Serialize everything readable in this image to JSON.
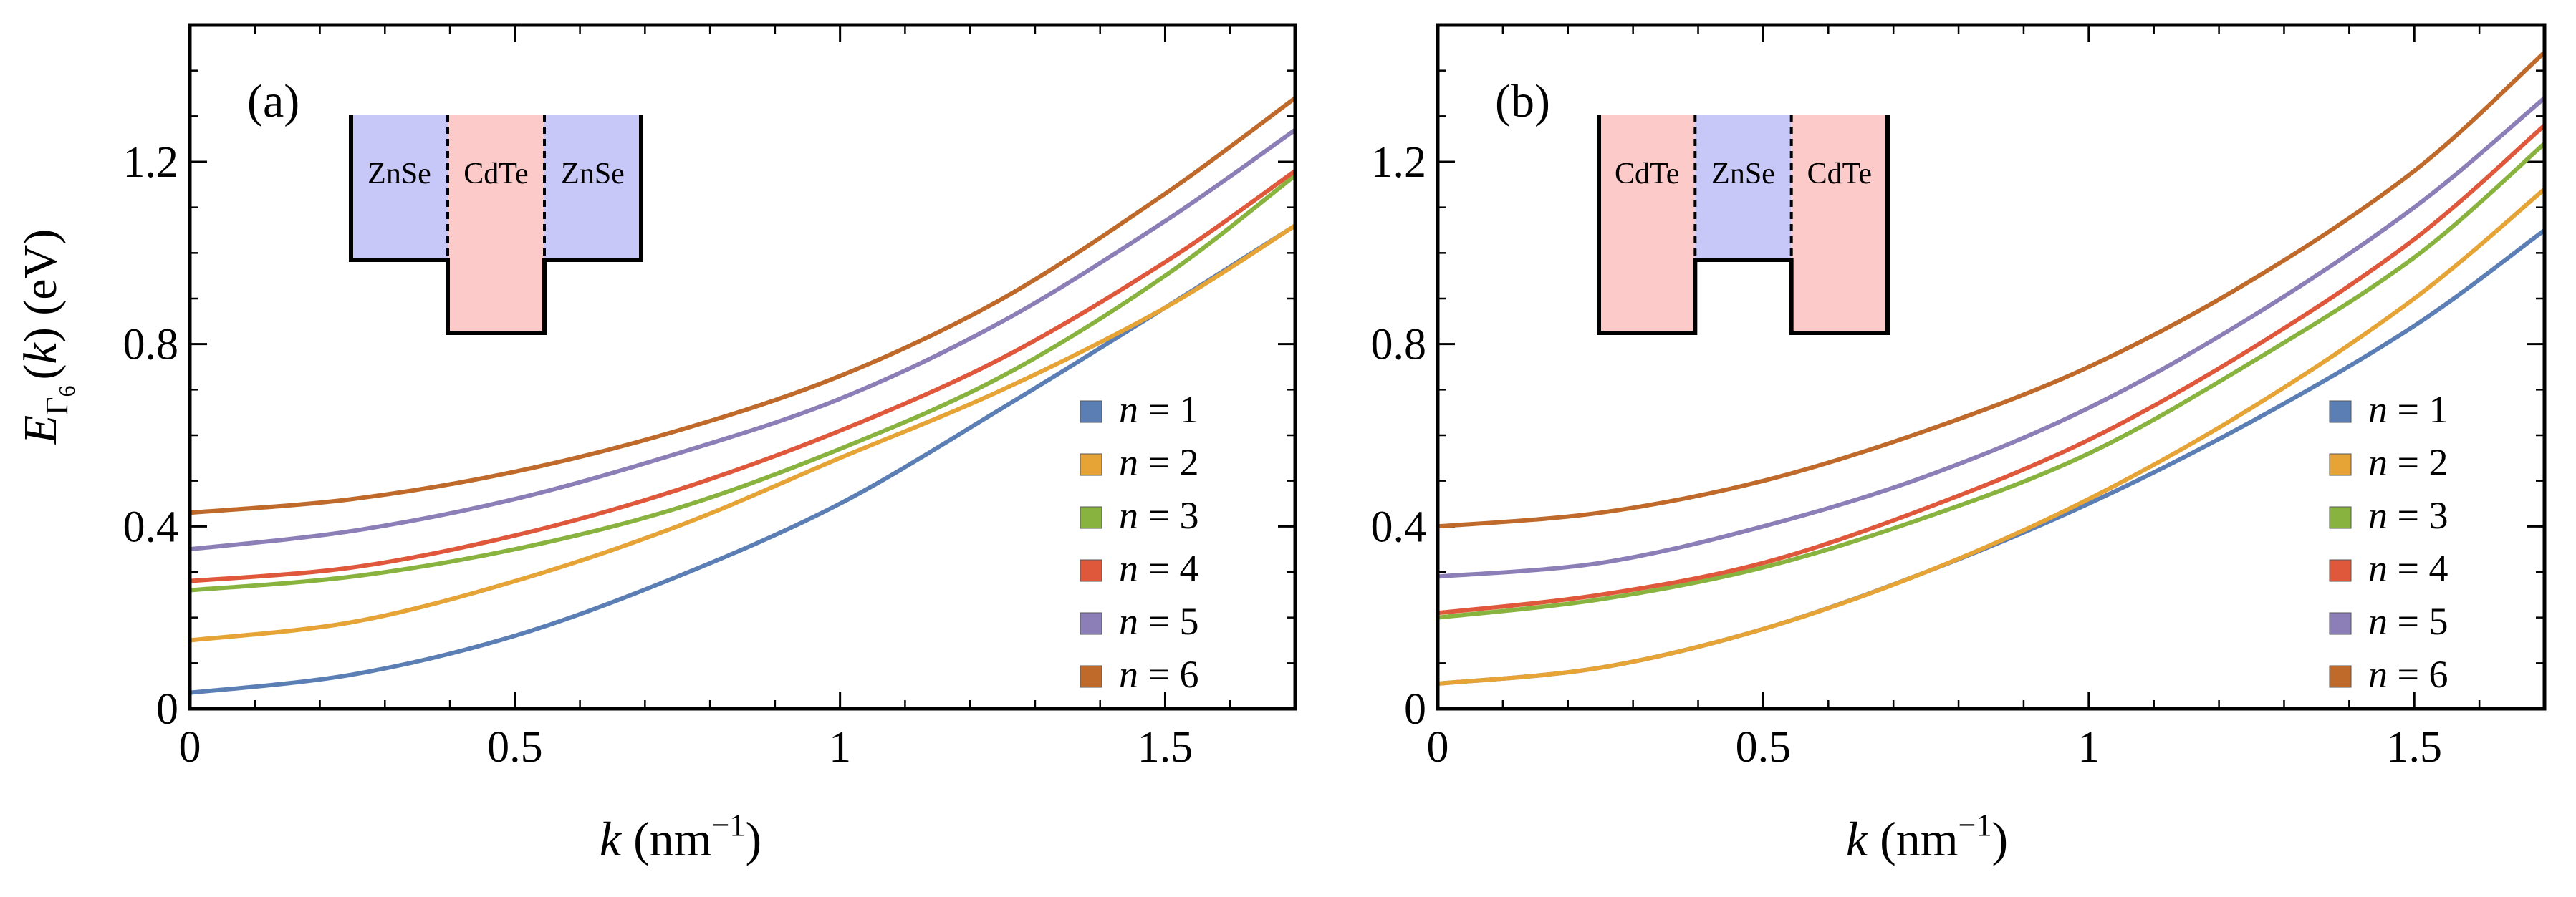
{
  "axis_common": {
    "xlabel_italic": "k",
    "xlabel_unit": " (nm",
    "xlabel_sup": "−1",
    "xlabel_close": ")",
    "ylabel_E": "E",
    "ylabel_sub": "Γ",
    "ylabel_subsub": "6",
    "ylabel_rest1": "(",
    "ylabel_k": "k",
    "ylabel_rest2": ") (eV)"
  },
  "legend_prefix": "n",
  "legend_eq": " = ",
  "chart_data": [
    {
      "type": "line",
      "panel_label": "(a)",
      "xlim": [
        0,
        1.7
      ],
      "ylim": [
        0,
        1.5
      ],
      "x_ticks": [
        0,
        0.5,
        1,
        1.5
      ],
      "x_tick_labels": [
        "0",
        "0.5",
        "1",
        "1.5"
      ],
      "y_ticks": [
        0,
        0.4,
        0.8,
        1.2
      ],
      "y_tick_labels": [
        "0",
        "0.4",
        "0.8",
        "1.2"
      ],
      "inset": {
        "left": "ZnSe",
        "center": "CdTe",
        "right": "ZnSe",
        "profile": "well"
      },
      "series": [
        {
          "name": "1",
          "color": "#5b7fb5",
          "x": [
            0,
            0.25,
            0.5,
            0.75,
            1.0,
            1.25,
            1.5,
            1.7
          ],
          "y": [
            0.035,
            0.075,
            0.16,
            0.29,
            0.45,
            0.66,
            0.88,
            1.06
          ]
        },
        {
          "name": "2",
          "color": "#e5a435",
          "x": [
            0,
            0.25,
            0.5,
            0.75,
            1.0,
            1.25,
            1.5,
            1.7
          ],
          "y": [
            0.15,
            0.19,
            0.28,
            0.4,
            0.55,
            0.7,
            0.88,
            1.06
          ]
        },
        {
          "name": "3",
          "color": "#89b33f",
          "x": [
            0,
            0.25,
            0.5,
            0.75,
            1.0,
            1.25,
            1.5,
            1.7
          ],
          "y": [
            0.26,
            0.29,
            0.35,
            0.44,
            0.57,
            0.73,
            0.95,
            1.17
          ]
        },
        {
          "name": "4",
          "color": "#e0583b",
          "x": [
            0,
            0.25,
            0.5,
            0.75,
            1.0,
            1.25,
            1.5,
            1.7
          ],
          "y": [
            0.28,
            0.31,
            0.38,
            0.48,
            0.61,
            0.77,
            0.98,
            1.18
          ]
        },
        {
          "name": "5",
          "color": "#8c7fb8",
          "x": [
            0,
            0.25,
            0.5,
            0.75,
            1.0,
            1.25,
            1.5,
            1.7
          ],
          "y": [
            0.35,
            0.39,
            0.46,
            0.56,
            0.68,
            0.85,
            1.07,
            1.27
          ]
        },
        {
          "name": "6",
          "color": "#bf6a2a",
          "x": [
            0,
            0.25,
            0.5,
            0.75,
            1.0,
            1.25,
            1.5,
            1.7
          ],
          "y": [
            0.43,
            0.46,
            0.52,
            0.61,
            0.73,
            0.9,
            1.13,
            1.34
          ]
        }
      ]
    },
    {
      "type": "line",
      "panel_label": "(b)",
      "xlim": [
        0,
        1.7
      ],
      "ylim": [
        0,
        1.5
      ],
      "x_ticks": [
        0,
        0.5,
        1,
        1.5
      ],
      "x_tick_labels": [
        "0",
        "0.5",
        "1",
        "1.5"
      ],
      "y_ticks": [
        0,
        0.4,
        0.8,
        1.2
      ],
      "y_tick_labels": [
        "0",
        "0.4",
        "0.8",
        "1.2"
      ],
      "inset": {
        "left": "CdTe",
        "center": "ZnSe",
        "right": "CdTe",
        "profile": "barrier"
      },
      "series": [
        {
          "name": "1",
          "color": "#5b7fb5",
          "x": [
            0,
            0.25,
            0.5,
            0.75,
            1.0,
            1.25,
            1.5,
            1.7
          ],
          "y": [
            0.055,
            0.09,
            0.175,
            0.3,
            0.45,
            0.63,
            0.84,
            1.05
          ]
        },
        {
          "name": "2",
          "color": "#e5a435",
          "x": [
            0,
            0.25,
            0.5,
            0.75,
            1.0,
            1.25,
            1.5,
            1.7
          ],
          "y": [
            0.055,
            0.09,
            0.175,
            0.3,
            0.46,
            0.66,
            0.9,
            1.14
          ]
        },
        {
          "name": "3",
          "color": "#89b33f",
          "x": [
            0,
            0.25,
            0.5,
            0.75,
            1.0,
            1.25,
            1.5,
            1.7
          ],
          "y": [
            0.2,
            0.24,
            0.31,
            0.42,
            0.56,
            0.76,
            0.99,
            1.24
          ]
        },
        {
          "name": "4",
          "color": "#e0583b",
          "x": [
            0,
            0.25,
            0.5,
            0.75,
            1.0,
            1.25,
            1.5,
            1.7
          ],
          "y": [
            0.21,
            0.25,
            0.32,
            0.44,
            0.59,
            0.79,
            1.03,
            1.28
          ]
        },
        {
          "name": "5",
          "color": "#8c7fb8",
          "x": [
            0,
            0.25,
            0.5,
            0.75,
            1.0,
            1.25,
            1.5,
            1.7
          ],
          "y": [
            0.29,
            0.32,
            0.4,
            0.51,
            0.66,
            0.86,
            1.1,
            1.34
          ]
        },
        {
          "name": "6",
          "color": "#bf6a2a",
          "x": [
            0,
            0.25,
            0.5,
            0.75,
            1.0,
            1.25,
            1.5,
            1.7
          ],
          "y": [
            0.4,
            0.43,
            0.5,
            0.61,
            0.75,
            0.94,
            1.18,
            1.44
          ]
        }
      ]
    }
  ]
}
